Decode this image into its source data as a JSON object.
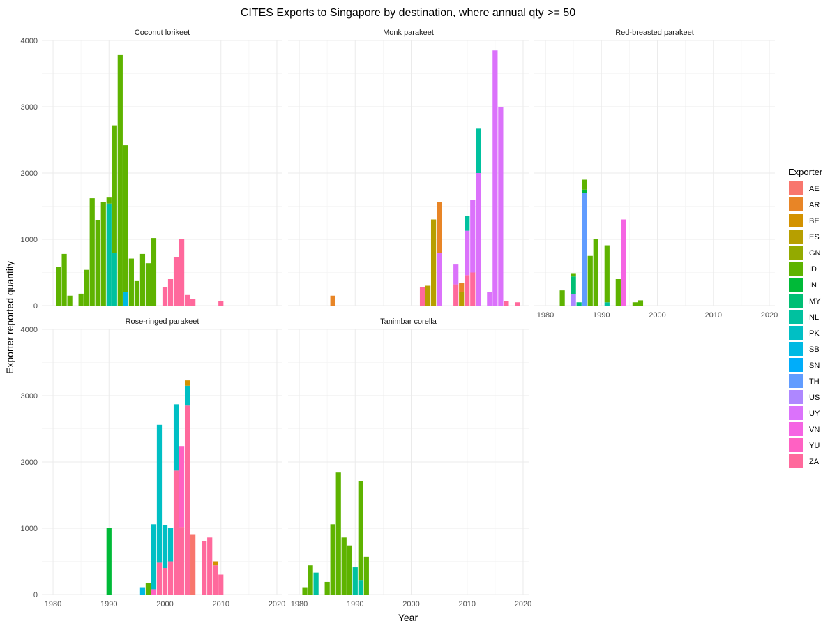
{
  "chart_data": {
    "type": "bar",
    "stacked": true,
    "title": "CITES Exports to Singapore by destination, where annual qty >= 50",
    "xlabel": "Year",
    "ylabel": "Exporter reported quantity",
    "xlim": [
      1978,
      2021
    ],
    "ylim": [
      0,
      4000
    ],
    "x_ticks": [
      1980,
      1990,
      2000,
      2010,
      2020
    ],
    "y_ticks": [
      0,
      1000,
      2000,
      3000,
      4000
    ],
    "grid": true,
    "legend": {
      "title": "Exporter",
      "position": "right",
      "entries": [
        "AE",
        "AR",
        "BE",
        "ES",
        "GN",
        "ID",
        "IN",
        "MY",
        "NL",
        "PK",
        "SB",
        "SN",
        "TH",
        "US",
        "UY",
        "VN",
        "YU",
        "ZA"
      ]
    },
    "colors": {
      "AE": "#F8766D",
      "AR": "#E88526",
      "BE": "#D39200",
      "ES": "#B79F00",
      "GN": "#93AA00",
      "ID": "#5EB300",
      "IN": "#00BA38",
      "MY": "#00BF74",
      "NL": "#00C19F",
      "PK": "#00BFC4",
      "SB": "#00B9E3",
      "SN": "#00ADFA",
      "TH": "#619CFF",
      "US": "#AE87FF",
      "UY": "#DB72FB",
      "VN": "#F564E3",
      "YU": "#FF61C3",
      "ZA": "#FF699C"
    },
    "panels": [
      {
        "name": "Coconut lorikeet",
        "bars": [
          {
            "year": 1981,
            "segments": [
              {
                "exporter": "ID",
                "value": 580
              }
            ]
          },
          {
            "year": 1982,
            "segments": [
              {
                "exporter": "ID",
                "value": 780
              }
            ]
          },
          {
            "year": 1983,
            "segments": [
              {
                "exporter": "ID",
                "value": 150
              }
            ]
          },
          {
            "year": 1985,
            "segments": [
              {
                "exporter": "ID",
                "value": 180
              }
            ]
          },
          {
            "year": 1986,
            "segments": [
              {
                "exporter": "ID",
                "value": 540
              }
            ]
          },
          {
            "year": 1987,
            "segments": [
              {
                "exporter": "ID",
                "value": 1620
              }
            ]
          },
          {
            "year": 1988,
            "segments": [
              {
                "exporter": "ID",
                "value": 1290
              }
            ]
          },
          {
            "year": 1989,
            "segments": [
              {
                "exporter": "ID",
                "value": 1560
              }
            ]
          },
          {
            "year": 1990,
            "segments": [
              {
                "exporter": "NL",
                "value": 1540
              },
              {
                "exporter": "ID",
                "value": 90
              }
            ]
          },
          {
            "year": 1991,
            "segments": [
              {
                "exporter": "NL",
                "value": 790
              },
              {
                "exporter": "ID",
                "value": 1930
              }
            ]
          },
          {
            "year": 1992,
            "segments": [
              {
                "exporter": "ID",
                "value": 3780
              }
            ]
          },
          {
            "year": 1993,
            "segments": [
              {
                "exporter": "SB",
                "value": 210
              },
              {
                "exporter": "ID",
                "value": 2210
              }
            ]
          },
          {
            "year": 1994,
            "segments": [
              {
                "exporter": "ID",
                "value": 710
              }
            ]
          },
          {
            "year": 1995,
            "segments": [
              {
                "exporter": "ID",
                "value": 380
              }
            ]
          },
          {
            "year": 1996,
            "segments": [
              {
                "exporter": "ID",
                "value": 780
              }
            ]
          },
          {
            "year": 1997,
            "segments": [
              {
                "exporter": "ID",
                "value": 640
              }
            ]
          },
          {
            "year": 1998,
            "segments": [
              {
                "exporter": "ID",
                "value": 1020
              }
            ]
          },
          {
            "year": 2000,
            "segments": [
              {
                "exporter": "ZA",
                "value": 280
              }
            ]
          },
          {
            "year": 2001,
            "segments": [
              {
                "exporter": "ZA",
                "value": 400
              }
            ]
          },
          {
            "year": 2002,
            "segments": [
              {
                "exporter": "ZA",
                "value": 730
              }
            ]
          },
          {
            "year": 2003,
            "segments": [
              {
                "exporter": "ZA",
                "value": 1010
              }
            ]
          },
          {
            "year": 2004,
            "segments": [
              {
                "exporter": "ZA",
                "value": 160
              }
            ]
          },
          {
            "year": 2005,
            "segments": [
              {
                "exporter": "ZA",
                "value": 100
              }
            ]
          },
          {
            "year": 2010,
            "segments": [
              {
                "exporter": "ZA",
                "value": 70
              }
            ]
          }
        ]
      },
      {
        "name": "Monk parakeet",
        "bars": [
          {
            "year": 1986,
            "segments": [
              {
                "exporter": "AR",
                "value": 150
              }
            ]
          },
          {
            "year": 2002,
            "segments": [
              {
                "exporter": "ZA",
                "value": 280
              }
            ]
          },
          {
            "year": 2003,
            "segments": [
              {
                "exporter": "ES",
                "value": 300
              }
            ]
          },
          {
            "year": 2004,
            "segments": [
              {
                "exporter": "ES",
                "value": 1300
              }
            ]
          },
          {
            "year": 2005,
            "segments": [
              {
                "exporter": "UY",
                "value": 800
              },
              {
                "exporter": "AR",
                "value": 760
              }
            ]
          },
          {
            "year": 2008,
            "segments": [
              {
                "exporter": "ZA",
                "value": 320
              },
              {
                "exporter": "UY",
                "value": 300
              }
            ]
          },
          {
            "year": 2009,
            "segments": [
              {
                "exporter": "ES",
                "value": 200
              },
              {
                "exporter": "AR",
                "value": 140
              }
            ]
          },
          {
            "year": 2010,
            "segments": [
              {
                "exporter": "ZA",
                "value": 460
              },
              {
                "exporter": "UY",
                "value": 670
              },
              {
                "exporter": "NL",
                "value": 220
              }
            ]
          },
          {
            "year": 2011,
            "segments": [
              {
                "exporter": "ZA",
                "value": 500
              },
              {
                "exporter": "UY",
                "value": 1100
              }
            ]
          },
          {
            "year": 2012,
            "segments": [
              {
                "exporter": "UY",
                "value": 2000
              },
              {
                "exporter": "NL",
                "value": 670
              }
            ]
          },
          {
            "year": 2014,
            "segments": [
              {
                "exporter": "UY",
                "value": 200
              }
            ]
          },
          {
            "year": 2015,
            "segments": [
              {
                "exporter": "UY",
                "value": 3850
              }
            ]
          },
          {
            "year": 2016,
            "segments": [
              {
                "exporter": "UY",
                "value": 3000
              }
            ]
          },
          {
            "year": 2017,
            "segments": [
              {
                "exporter": "ZA",
                "value": 70
              }
            ]
          },
          {
            "year": 2019,
            "segments": [
              {
                "exporter": "ZA",
                "value": 50
              }
            ]
          }
        ]
      },
      {
        "name": "Red-breasted parakeet",
        "bars": [
          {
            "year": 1983,
            "segments": [
              {
                "exporter": "ID",
                "value": 230
              }
            ]
          },
          {
            "year": 1985,
            "segments": [
              {
                "exporter": "US",
                "value": 170
              },
              {
                "exporter": "MY",
                "value": 270
              },
              {
                "exporter": "ID",
                "value": 50
              }
            ]
          },
          {
            "year": 1986,
            "segments": [
              {
                "exporter": "MY",
                "value": 50
              }
            ]
          },
          {
            "year": 1987,
            "segments": [
              {
                "exporter": "TH",
                "value": 1700
              },
              {
                "exporter": "IN",
                "value": 50
              },
              {
                "exporter": "ID",
                "value": 150
              }
            ]
          },
          {
            "year": 1988,
            "segments": [
              {
                "exporter": "ID",
                "value": 750
              }
            ]
          },
          {
            "year": 1989,
            "segments": [
              {
                "exporter": "ID",
                "value": 1000
              }
            ]
          },
          {
            "year": 1991,
            "segments": [
              {
                "exporter": "NL",
                "value": 50
              },
              {
                "exporter": "ID",
                "value": 860
              }
            ]
          },
          {
            "year": 1993,
            "segments": [
              {
                "exporter": "ID",
                "value": 400
              }
            ]
          },
          {
            "year": 1994,
            "segments": [
              {
                "exporter": "VN",
                "value": 1300
              }
            ]
          },
          {
            "year": 1996,
            "segments": [
              {
                "exporter": "ID",
                "value": 50
              }
            ]
          },
          {
            "year": 1997,
            "segments": [
              {
                "exporter": "ID",
                "value": 80
              }
            ]
          }
        ]
      },
      {
        "name": "Rose-ringed parakeet",
        "bars": [
          {
            "year": 1990,
            "segments": [
              {
                "exporter": "IN",
                "value": 1000
              }
            ]
          },
          {
            "year": 1996,
            "segments": [
              {
                "exporter": "SB",
                "value": 110
              }
            ]
          },
          {
            "year": 1997,
            "segments": [
              {
                "exporter": "ID",
                "value": 170
              }
            ]
          },
          {
            "year": 1998,
            "segments": [
              {
                "exporter": "YU",
                "value": 80
              },
              {
                "exporter": "PK",
                "value": 980
              }
            ]
          },
          {
            "year": 1999,
            "segments": [
              {
                "exporter": "ZA",
                "value": 480
              },
              {
                "exporter": "PK",
                "value": 2080
              }
            ]
          },
          {
            "year": 2000,
            "segments": [
              {
                "exporter": "ZA",
                "value": 400
              },
              {
                "exporter": "PK",
                "value": 650
              }
            ]
          },
          {
            "year": 2001,
            "segments": [
              {
                "exporter": "ZA",
                "value": 500
              },
              {
                "exporter": "PK",
                "value": 500
              }
            ]
          },
          {
            "year": 2002,
            "segments": [
              {
                "exporter": "ZA",
                "value": 1870
              },
              {
                "exporter": "PK",
                "value": 1000
              }
            ]
          },
          {
            "year": 2003,
            "segments": [
              {
                "exporter": "ZA",
                "value": 1020
              },
              {
                "exporter": "YU",
                "value": 1220
              },
              {
                "exporter": "PK",
                "value": 0
              }
            ]
          },
          {
            "year": 2004,
            "segments": [
              {
                "exporter": "ZA",
                "value": 2850
              },
              {
                "exporter": "PK",
                "value": 300
              },
              {
                "exporter": "BE",
                "value": 80
              }
            ]
          },
          {
            "year": 2005,
            "segments": [
              {
                "exporter": "AE",
                "value": 900
              }
            ]
          },
          {
            "year": 2007,
            "segments": [
              {
                "exporter": "ZA",
                "value": 800
              }
            ]
          },
          {
            "year": 2008,
            "segments": [
              {
                "exporter": "ZA",
                "value": 860
              }
            ]
          },
          {
            "year": 2009,
            "segments": [
              {
                "exporter": "ZA",
                "value": 440
              },
              {
                "exporter": "BE",
                "value": 60
              }
            ]
          },
          {
            "year": 2010,
            "segments": [
              {
                "exporter": "ZA",
                "value": 300
              }
            ]
          }
        ]
      },
      {
        "name": "Tanimbar corella",
        "bars": [
          {
            "year": 1981,
            "segments": [
              {
                "exporter": "ID",
                "value": 110
              }
            ]
          },
          {
            "year": 1982,
            "segments": [
              {
                "exporter": "ID",
                "value": 440
              }
            ]
          },
          {
            "year": 1983,
            "segments": [
              {
                "exporter": "NL",
                "value": 330
              }
            ]
          },
          {
            "year": 1985,
            "segments": [
              {
                "exporter": "ID",
                "value": 190
              }
            ]
          },
          {
            "year": 1986,
            "segments": [
              {
                "exporter": "ID",
                "value": 1060
              }
            ]
          },
          {
            "year": 1987,
            "segments": [
              {
                "exporter": "ID",
                "value": 1840
              }
            ]
          },
          {
            "year": 1988,
            "segments": [
              {
                "exporter": "ID",
                "value": 860
              }
            ]
          },
          {
            "year": 1989,
            "segments": [
              {
                "exporter": "ID",
                "value": 740
              }
            ]
          },
          {
            "year": 1990,
            "segments": [
              {
                "exporter": "NL",
                "value": 410
              }
            ]
          },
          {
            "year": 1991,
            "segments": [
              {
                "exporter": "NL",
                "value": 220
              },
              {
                "exporter": "ID",
                "value": 1490
              }
            ]
          },
          {
            "year": 1992,
            "segments": [
              {
                "exporter": "ID",
                "value": 570
              }
            ]
          }
        ]
      }
    ]
  }
}
